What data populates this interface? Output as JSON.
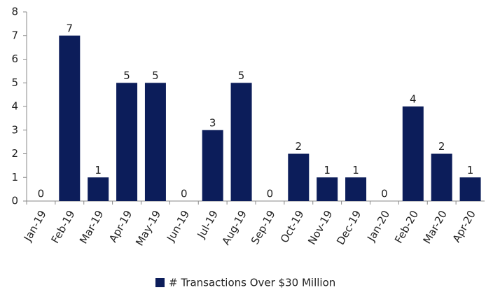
{
  "chart_data": {
    "type": "bar",
    "categories": [
      "Jan-19",
      "Feb-19",
      "Mar-19",
      "Apr-19",
      "May-19",
      "Jun-19",
      "Jul-19",
      "Aug-19",
      "Sep-19",
      "Oct-19",
      "Nov-19",
      "Dec-19",
      "Jan-20",
      "Feb-20",
      "Mar-20",
      "Apr-20"
    ],
    "series": [
      {
        "name": "# Transactions Over $30 Million",
        "color": "#0c1d5a",
        "values": [
          0,
          7,
          1,
          5,
          5,
          0,
          3,
          5,
          0,
          2,
          1,
          1,
          0,
          4,
          2,
          1
        ]
      }
    ],
    "ylim": [
      0,
      8
    ],
    "yticks": [
      0,
      1,
      2,
      3,
      4,
      5,
      6,
      7,
      8
    ],
    "grid": false,
    "legend": "bottom"
  }
}
